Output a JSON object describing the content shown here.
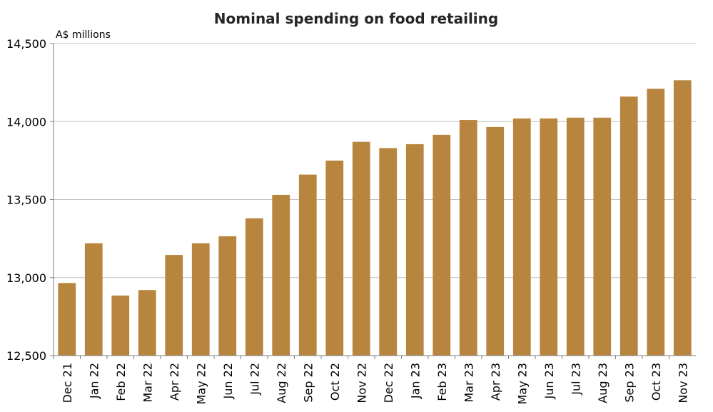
{
  "chart_data": {
    "type": "bar",
    "title": "Nominal spending on food retailing",
    "ylabel": "A$ millions",
    "xlabel": "",
    "ylim": [
      12500,
      14500
    ],
    "yticks": [
      12500,
      13000,
      13500,
      14000,
      14500
    ],
    "ytick_labels": [
      "12,500",
      "13,000",
      "13,500",
      "14,000",
      "14,500"
    ],
    "grid": true,
    "legend": "none",
    "bar_color": "#B8853E",
    "categories": [
      "Dec 21",
      "Jan 22",
      "Feb 22",
      "Mar 22",
      "Apr 22",
      "May 22",
      "Jun 22",
      "Jul 22",
      "Aug 22",
      "Sep 22",
      "Oct 22",
      "Nov 22",
      "Dec 22",
      "Jan 23",
      "Feb 23",
      "Mar 23",
      "Apr 23",
      "May 23",
      "Jun 23",
      "Jul 23",
      "Aug 23",
      "Sep 23",
      "Oct 23",
      "Nov 23"
    ],
    "values": [
      12965,
      13220,
      12885,
      12920,
      13145,
      13220,
      13265,
      13380,
      13530,
      13660,
      13750,
      13870,
      13830,
      13855,
      13915,
      14010,
      13965,
      14020,
      14020,
      14025,
      14025,
      14160,
      14210,
      14265
    ]
  }
}
